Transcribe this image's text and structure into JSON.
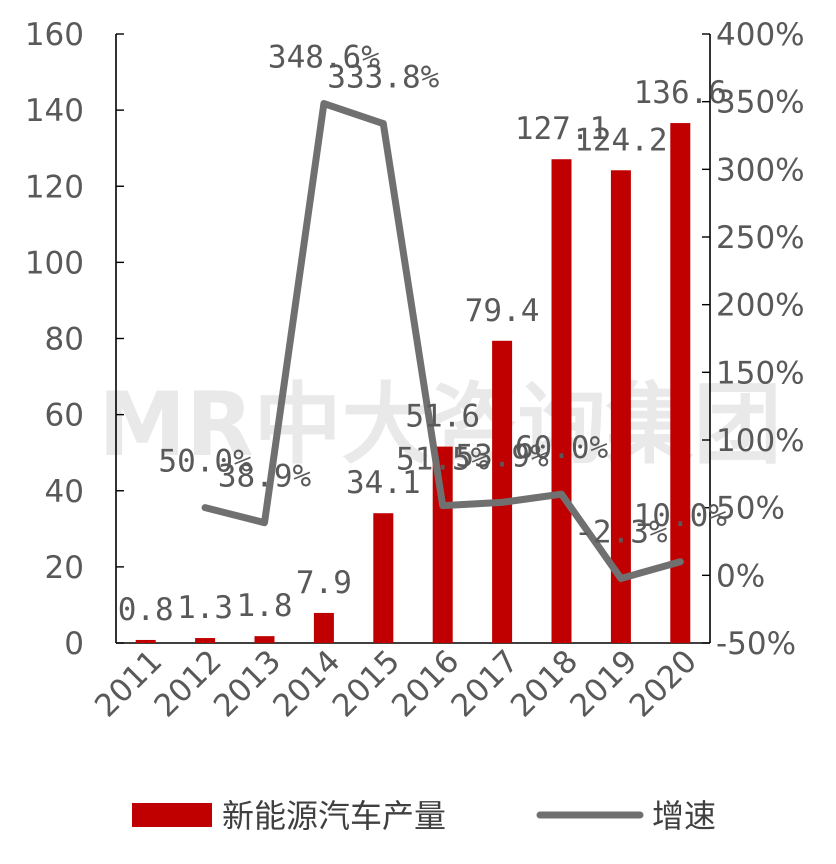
{
  "chart_data": {
    "type": "bar+line",
    "categories": [
      "2011",
      "2012",
      "2013",
      "2014",
      "2015",
      "2016",
      "2017",
      "2018",
      "2019",
      "2020"
    ],
    "series": [
      {
        "name": "新能源汽车产量",
        "type": "bar",
        "axis": "left",
        "color": "#c00000",
        "values": [
          0.8,
          1.3,
          1.8,
          7.9,
          34.1,
          51.6,
          79.4,
          127.1,
          124.2,
          136.6
        ],
        "labels": [
          "0.8",
          "1.3",
          "1.8",
          "7.9",
          "34.1",
          "51.6",
          "79.4",
          "127.1",
          "124.2",
          "136.6"
        ]
      },
      {
        "name": "增速",
        "type": "line",
        "axis": "right",
        "color": "#707070",
        "values": [
          null,
          50.0,
          38.9,
          348.6,
          333.8,
          51.5,
          53.9,
          60.0,
          -2.3,
          10.0
        ],
        "labels": [
          "",
          "50.0%",
          "38.9%",
          "348.6%",
          "333.8%",
          "51.5%",
          "53.9%",
          "60.0%",
          "-2.3%",
          "10.0%"
        ]
      }
    ],
    "ylim_left": [
      0,
      160
    ],
    "yticks_left": [
      "0",
      "20",
      "40",
      "60",
      "80",
      "100",
      "120",
      "140",
      "160"
    ],
    "ylim_right": [
      -50,
      400
    ],
    "yticks_right": [
      "-50%",
      "0%",
      "50%",
      "100%",
      "150%",
      "200%",
      "250%",
      "300%",
      "350%",
      "400%"
    ],
    "legend_position": "bottom",
    "grid": false
  },
  "watermark": "MR中大咨询集团"
}
